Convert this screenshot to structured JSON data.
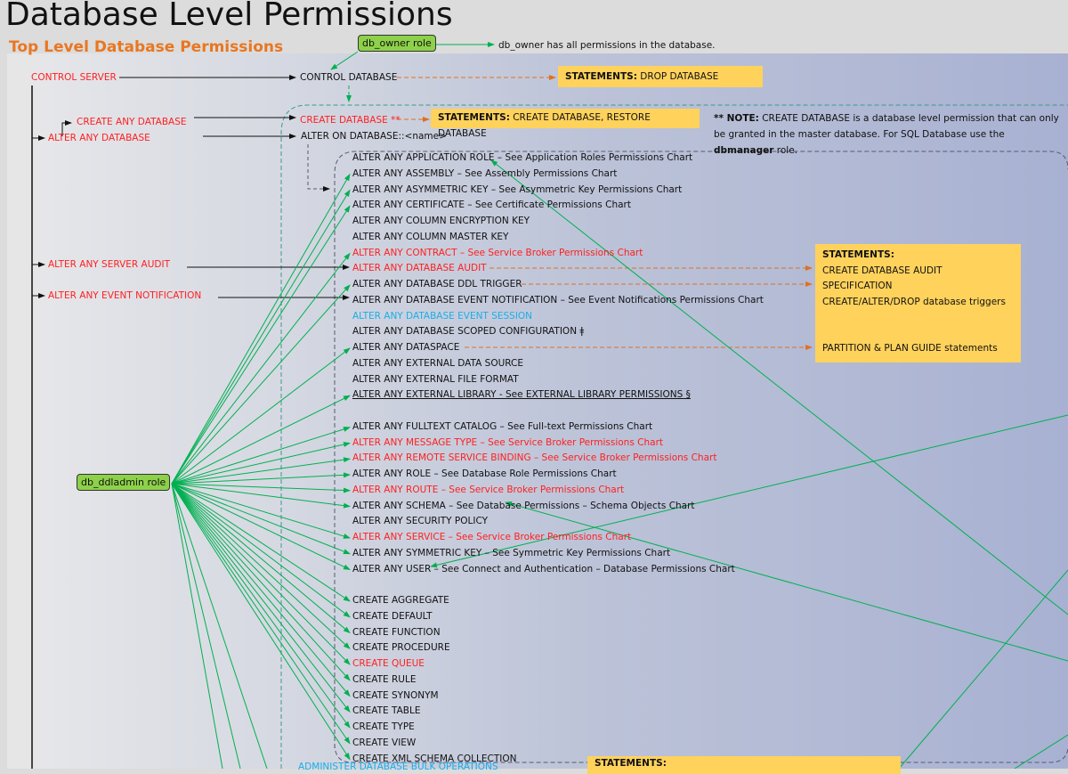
{
  "title": "Database Level Permissions",
  "subtitle": "Top Level Database Permissions",
  "roles": {
    "db_owner": "db_owner role",
    "db_owner_note": "db_owner has all permissions in the database.",
    "db_ddladmin": "db_ddladmin role"
  },
  "server_permissions": {
    "control_server": "CONTROL SERVER",
    "create_any_database": "CREATE ANY DATABASE",
    "alter_any_database": "ALTER ANY DATABASE",
    "alter_any_server_audit": "ALTER ANY SERVER AUDIT",
    "alter_any_event_notification": "ALTER ANY EVENT NOTIFICATION"
  },
  "database_permissions": {
    "control_database": "CONTROL DATABASE",
    "create_database": "CREATE DATABASE **",
    "alter_on_database": "ALTER ON DATABASE::<name>",
    "administer_bulk": "ADMINISTER DATABASE BULK OPERATIONS"
  },
  "statements": {
    "drop": {
      "label": "STATEMENTS:",
      "text": " DROP DATABASE"
    },
    "create": {
      "label": "STATEMENTS:",
      "text": " CREATE DATABASE, RESTORE DATABASE"
    },
    "audit": {
      "label": "STATEMENTS:",
      "line1": "CREATE DATABASE AUDIT SPECIFICATION",
      "line2": "CREATE/ALTER/DROP database triggers",
      "line3": "PARTITION & PLAN GUIDE statements"
    },
    "bottom": {
      "label": "STATEMENTS:"
    }
  },
  "note": {
    "prefix": "** NOTE:",
    "text1": " CREATE DATABASE is a database level permission that can only be granted in the master database. For SQL Database use the ",
    "bold": "dbmanager",
    "text2": " role."
  },
  "items": [
    {
      "text": "ALTER ANY APPLICATION ROLE – See Application Roles Permissions Chart",
      "color": "black"
    },
    {
      "text": "ALTER ANY ASSEMBLY – See Assembly Permissions Chart",
      "color": "black"
    },
    {
      "text": "ALTER ANY ASYMMETRIC KEY – See Asymmetric Key Permissions Chart",
      "color": "black"
    },
    {
      "text": "ALTER ANY CERTIFICATE – See Certificate Permissions Chart",
      "color": "black"
    },
    {
      "text": "ALTER ANY COLUMN ENCRYPTION KEY",
      "color": "black"
    },
    {
      "text": "ALTER ANY COLUMN MASTER KEY",
      "color": "black"
    },
    {
      "text": "ALTER ANY CONTRACT – See Service Broker Permissions Chart",
      "color": "red"
    },
    {
      "text": "ALTER ANY DATABASE AUDIT",
      "color": "red"
    },
    {
      "text": "ALTER ANY DATABASE DDL TRIGGER",
      "color": "black"
    },
    {
      "text": "ALTER ANY DATABASE EVENT NOTIFICATION – See Event Notifications Permissions Chart",
      "color": "black"
    },
    {
      "text": "ALTER ANY DATABASE EVENT SESSION",
      "color": "cyan"
    },
    {
      "text": "ALTER ANY DATABASE SCOPED CONFIGURATION ǂ",
      "color": "black"
    },
    {
      "text": "ALTER ANY DATASPACE",
      "color": "black"
    },
    {
      "text": "ALTER ANY EXTERNAL DATA SOURCE",
      "color": "black"
    },
    {
      "text": "ALTER ANY EXTERNAL FILE FORMAT",
      "color": "black"
    },
    {
      "text": "ALTER ANY EXTERNAL LIBRARY - See EXTERNAL LIBRARY PERMISSIONS §",
      "color": "black",
      "underline": true
    },
    {
      "text": "",
      "color": "black"
    },
    {
      "text": "ALTER ANY FULLTEXT CATALOG – See Full-text Permissions Chart",
      "color": "black"
    },
    {
      "text": "ALTER ANY MESSAGE TYPE – See Service Broker Permissions Chart",
      "color": "red"
    },
    {
      "text": "ALTER ANY REMOTE SERVICE BINDING – See Service Broker Permissions Chart",
      "color": "red"
    },
    {
      "text": "ALTER ANY ROLE – See Database Role Permissions Chart",
      "color": "black"
    },
    {
      "text": "ALTER ANY ROUTE – See Service Broker Permissions Chart",
      "color": "red"
    },
    {
      "text": "ALTER ANY SCHEMA – See Database Permissions – Schema Objects Chart",
      "color": "black"
    },
    {
      "text": "ALTER ANY SECURITY POLICY",
      "color": "black"
    },
    {
      "text": "ALTER ANY SERVICE – See Service Broker Permissions Chart",
      "color": "red"
    },
    {
      "text": "ALTER ANY SYMMETRIC KEY – See Symmetric Key Permissions Chart",
      "color": "black"
    },
    {
      "text": "ALTER ANY USER – See Connect and Authentication – Database Permissions Chart",
      "color": "black"
    },
    {
      "text": "",
      "color": "black"
    },
    {
      "text": "CREATE AGGREGATE",
      "color": "black"
    },
    {
      "text": "CREATE DEFAULT",
      "color": "black"
    },
    {
      "text": "CREATE FUNCTION",
      "color": "black"
    },
    {
      "text": "CREATE PROCEDURE",
      "color": "black"
    },
    {
      "text": "CREATE QUEUE",
      "color": "red"
    },
    {
      "text": "CREATE RULE",
      "color": "black"
    },
    {
      "text": "CREATE SYNONYM",
      "color": "black"
    },
    {
      "text": "CREATE TABLE",
      "color": "black"
    },
    {
      "text": "CREATE TYPE",
      "color": "black"
    },
    {
      "text": "CREATE VIEW",
      "color": "black"
    },
    {
      "text": "CREATE XML SCHEMA COLLECTION",
      "color": "black"
    }
  ],
  "colors": {
    "red": "#ff1f1f",
    "cyan": "#1aaee8",
    "green": "#00b050",
    "orange": "#e07020",
    "statement": "#ffd25c",
    "title_orange": "#e87722"
  }
}
